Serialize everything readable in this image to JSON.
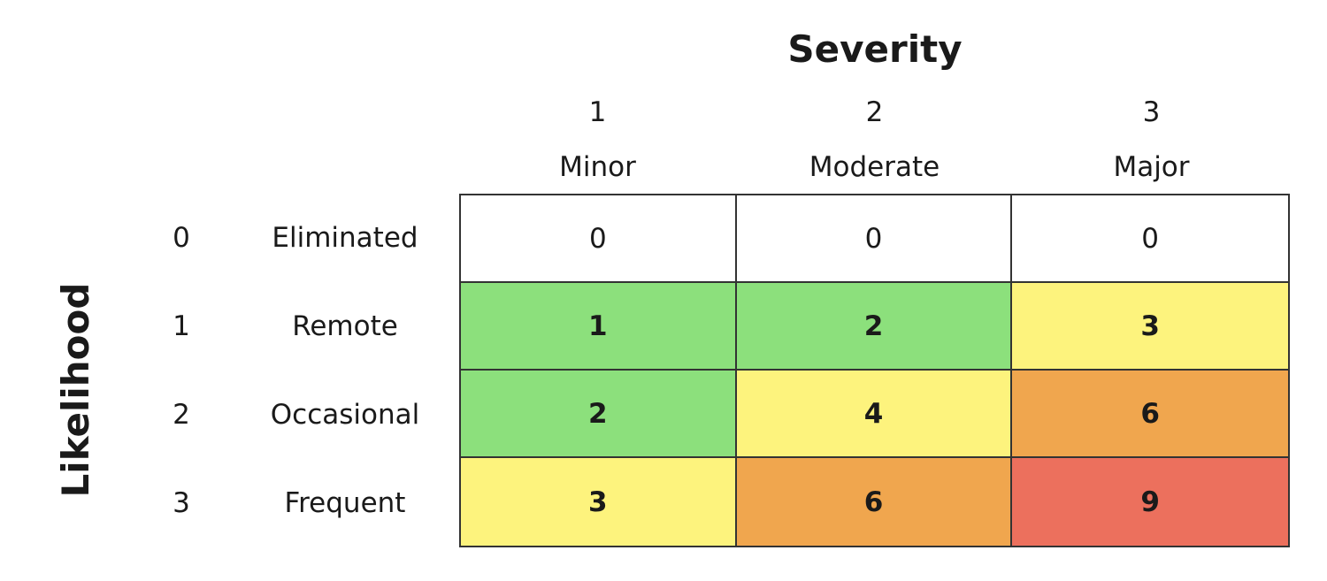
{
  "chart_data": {
    "type": "heatmap",
    "title": "Severity",
    "xlabel": "Severity",
    "ylabel": "Likelihood",
    "columns": [
      {
        "number": "1",
        "name": "Minor"
      },
      {
        "number": "2",
        "name": "Moderate"
      },
      {
        "number": "3",
        "name": "Major"
      }
    ],
    "rows": [
      {
        "number": "0",
        "name": "Eliminated"
      },
      {
        "number": "1",
        "name": "Remote"
      },
      {
        "number": "2",
        "name": "Occasional"
      },
      {
        "number": "3",
        "name": "Frequent"
      }
    ],
    "values": [
      [
        "0",
        "0",
        "0"
      ],
      [
        "1",
        "2",
        "3"
      ],
      [
        "2",
        "4",
        "6"
      ],
      [
        "3",
        "6",
        "9"
      ]
    ],
    "cell_colors": [
      [
        "#ffffff",
        "#ffffff",
        "#ffffff"
      ],
      [
        "#8ce07c",
        "#8ce07c",
        "#fdf37d"
      ],
      [
        "#8ce07c",
        "#fdf37d",
        "#f0a64e"
      ],
      [
        "#fdf37d",
        "#f0a64e",
        "#ec705d"
      ]
    ]
  }
}
